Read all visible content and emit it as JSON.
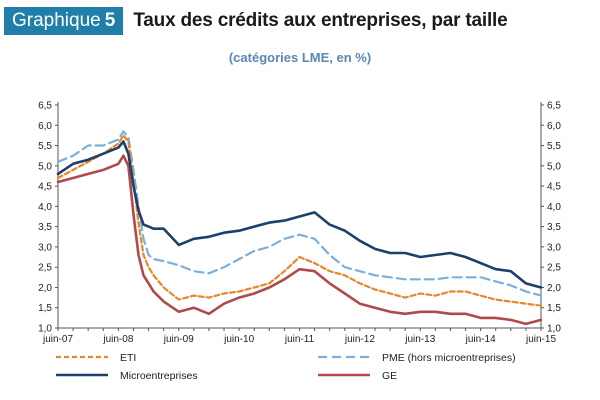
{
  "header": {
    "badge_label": "Graphique",
    "badge_number": "5",
    "title": "Taux des crédits aux entreprises, par taille",
    "subtitle": "(catégories LME, en %)"
  },
  "chart_data": {
    "type": "line",
    "x": [
      "2007-06",
      "2007-09",
      "2007-12",
      "2008-03",
      "2008-06",
      "2008-07",
      "2008-08",
      "2008-09",
      "2008-10",
      "2008-11",
      "2008-12",
      "2009-01",
      "2009-03",
      "2009-06",
      "2009-09",
      "2009-12",
      "2010-03",
      "2010-06",
      "2010-09",
      "2010-12",
      "2011-03",
      "2011-06",
      "2011-09",
      "2011-12",
      "2012-03",
      "2012-06",
      "2012-09",
      "2012-12",
      "2013-03",
      "2013-06",
      "2013-09",
      "2013-12",
      "2014-03",
      "2014-06",
      "2014-09",
      "2014-12",
      "2015-03",
      "2015-06"
    ],
    "x_ticks": [
      "juin-07",
      "juin-08",
      "juin-09",
      "juin-10",
      "juin-11",
      "juin-12",
      "juin-13",
      "juin-14",
      "juin-15"
    ],
    "ylim": [
      1.0,
      6.5
    ],
    "y_ticks": [
      "1,0",
      "1,5",
      "2,0",
      "2,5",
      "3,0",
      "3,5",
      "4,0",
      "4,5",
      "5,0",
      "5,5",
      "6,0",
      "6,5"
    ],
    "grid": false,
    "legend_position": "bottom",
    "series": [
      {
        "name": "ETI",
        "color": "#e8862a",
        "dash": "dashed",
        "values": [
          4.7,
          4.9,
          5.1,
          5.3,
          5.55,
          5.75,
          5.6,
          4.6,
          3.6,
          2.8,
          2.5,
          2.3,
          2.0,
          1.7,
          1.8,
          1.75,
          1.85,
          1.9,
          2.0,
          2.1,
          2.4,
          2.75,
          2.6,
          2.4,
          2.3,
          2.1,
          1.95,
          1.85,
          1.75,
          1.85,
          1.8,
          1.9,
          1.9,
          1.8,
          1.7,
          1.65,
          1.6,
          1.55
        ]
      },
      {
        "name": "PME (hors microentreprises)",
        "color": "#7ab0dd",
        "dash": "longdash",
        "values": [
          5.1,
          5.25,
          5.5,
          5.5,
          5.65,
          5.85,
          5.7,
          4.9,
          4.0,
          3.2,
          2.8,
          2.7,
          2.65,
          2.55,
          2.4,
          2.35,
          2.5,
          2.7,
          2.9,
          3.0,
          3.2,
          3.3,
          3.2,
          2.8,
          2.5,
          2.4,
          2.3,
          2.25,
          2.2,
          2.2,
          2.2,
          2.25,
          2.25,
          2.25,
          2.15,
          2.05,
          1.9,
          1.8
        ]
      },
      {
        "name": "Microentreprises",
        "color": "#1d3f6e",
        "dash": "solid",
        "values": [
          4.8,
          5.05,
          5.15,
          5.3,
          5.45,
          5.6,
          5.3,
          4.5,
          3.9,
          3.55,
          3.5,
          3.45,
          3.45,
          3.05,
          3.2,
          3.25,
          3.35,
          3.4,
          3.5,
          3.6,
          3.65,
          3.75,
          3.85,
          3.55,
          3.4,
          3.15,
          2.95,
          2.85,
          2.85,
          2.75,
          2.8,
          2.85,
          2.75,
          2.6,
          2.45,
          2.4,
          2.1,
          2.0
        ]
      },
      {
        "name": "GE",
        "color": "#b04a4a",
        "dash": "solid",
        "values": [
          4.6,
          4.7,
          4.8,
          4.9,
          5.05,
          5.25,
          5.0,
          3.8,
          2.8,
          2.3,
          2.1,
          1.9,
          1.65,
          1.4,
          1.5,
          1.35,
          1.6,
          1.75,
          1.85,
          2.0,
          2.2,
          2.45,
          2.4,
          2.1,
          1.85,
          1.6,
          1.5,
          1.4,
          1.35,
          1.4,
          1.4,
          1.35,
          1.35,
          1.25,
          1.25,
          1.2,
          1.1,
          1.2
        ]
      }
    ]
  }
}
